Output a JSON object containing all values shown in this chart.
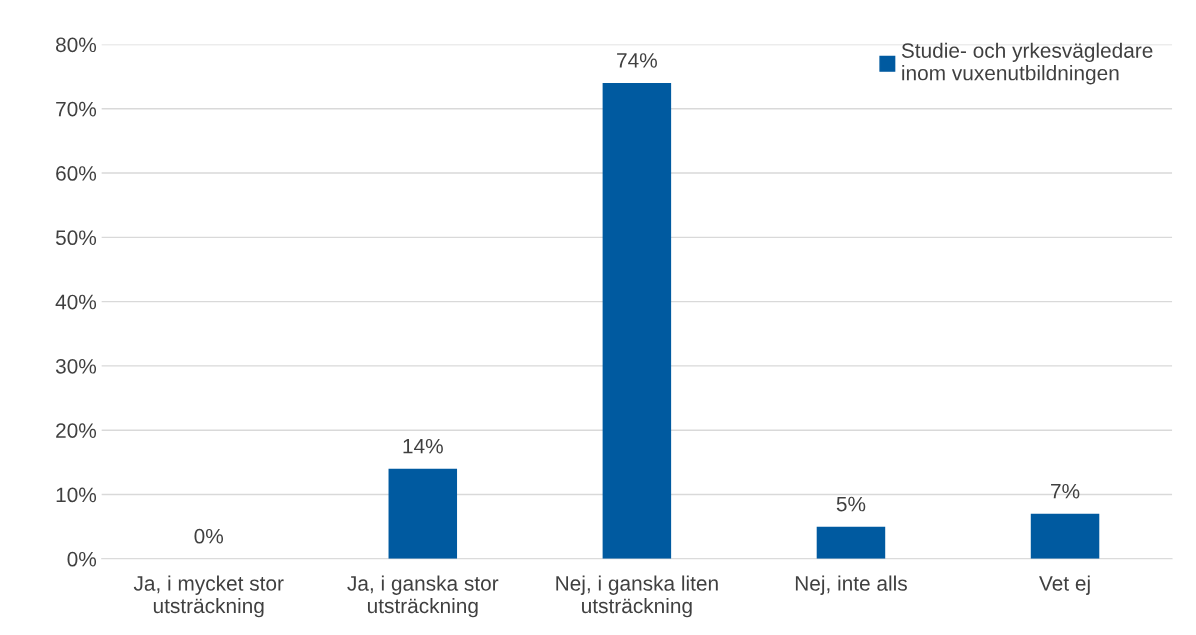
{
  "chart_data": {
    "type": "bar",
    "categories": [
      "Ja, i mycket stor\nutsträckning",
      "Ja, i ganska stor\nutsträckning",
      "Nej, i ganska liten\nutsträckning",
      "Nej, inte alls",
      "Vet ej"
    ],
    "series": [
      {
        "name": "Studie- och yrkesvägledare\ninom vuxenutbildningen",
        "color": "#005aa0",
        "values": [
          0,
          14,
          74,
          5,
          7
        ],
        "value_labels": [
          "0%",
          "14%",
          "74%",
          "5%",
          "7%"
        ]
      }
    ],
    "ylim": [
      0,
      80
    ],
    "yticks": [
      {
        "value": 0,
        "label": "0%"
      },
      {
        "value": 10,
        "label": "10%"
      },
      {
        "value": 20,
        "label": "20%"
      },
      {
        "value": 30,
        "label": "30%"
      },
      {
        "value": 40,
        "label": "40%"
      },
      {
        "value": 50,
        "label": "50%"
      },
      {
        "value": 60,
        "label": "60%"
      },
      {
        "value": 70,
        "label": "70%"
      },
      {
        "value": 80,
        "label": "80%"
      }
    ],
    "grid": "y",
    "legend": "top right"
  }
}
